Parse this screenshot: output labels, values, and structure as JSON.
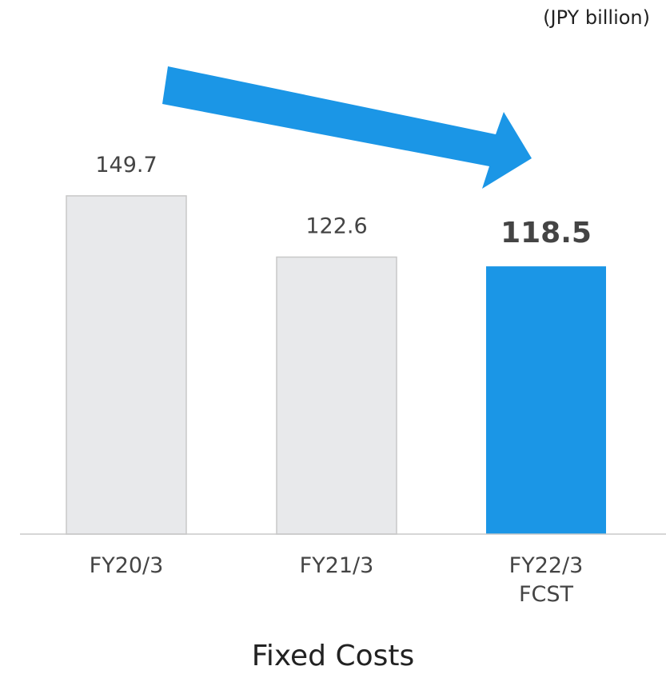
{
  "chart_data": {
    "type": "bar",
    "title": "Fixed Costs",
    "unit_label": "(JPY billion)",
    "categories": [
      "FY20/3",
      "FY21/3",
      "FY22/3 FCST"
    ],
    "values": [
      149.7,
      122.6,
      118.5
    ],
    "colors": [
      "#e8e9eb",
      "#e8e9eb",
      "#1b96e6"
    ],
    "highlight_index": 2
  }
}
